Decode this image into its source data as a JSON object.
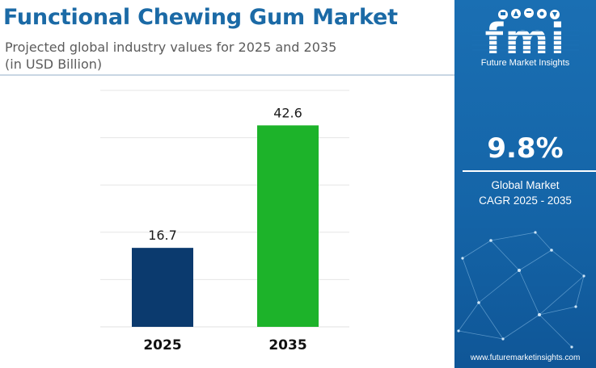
{
  "header": {
    "title": "Functional Chewing Gum Market",
    "subtitle_line1": "Projected global industry values for 2025 and 2035",
    "subtitle_line2": "(in USD Billion)"
  },
  "chart_data": {
    "type": "bar",
    "title": "Functional Chewing Gum Market",
    "subtitle": "Projected global industry values for 2025 and 2035 (in USD Billion)",
    "categories": [
      "2025",
      "2035"
    ],
    "values": [
      16.7,
      42.6
    ],
    "bar_colors": [
      "#0b3a6e",
      "#1db32a"
    ],
    "xlabel": "",
    "ylabel": "",
    "ylim": [
      0,
      50
    ],
    "grid": true,
    "legend": "none"
  },
  "sidebar": {
    "logo_text": "fmi",
    "brand": "Future Market Insights",
    "cagr_value": "9.8%",
    "cagr_label_line1": "Global Market",
    "cagr_label_line2": "CAGR 2025 - 2035",
    "url": "www.futuremarketinsights.com"
  },
  "colors": {
    "title": "#1b6aa6",
    "sidebar": "#1a6fb3",
    "bar_2025": "#0b3a6e",
    "bar_2035": "#1db32a"
  }
}
